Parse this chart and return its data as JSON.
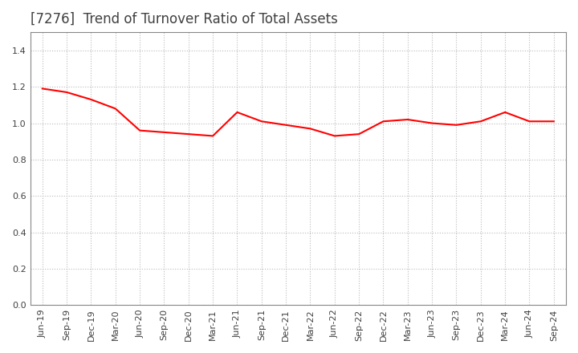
{
  "title": "[7276]  Trend of Turnover Ratio of Total Assets",
  "x_labels": [
    "Jun-19",
    "Sep-19",
    "Dec-19",
    "Mar-20",
    "Jun-20",
    "Sep-20",
    "Dec-20",
    "Mar-21",
    "Jun-21",
    "Sep-21",
    "Dec-21",
    "Mar-22",
    "Jun-22",
    "Sep-22",
    "Dec-22",
    "Mar-23",
    "Jun-23",
    "Sep-23",
    "Dec-23",
    "Mar-24",
    "Jun-24",
    "Sep-24"
  ],
  "y_values": [
    1.19,
    1.17,
    1.13,
    1.08,
    0.96,
    0.95,
    0.94,
    0.93,
    1.06,
    1.01,
    0.99,
    0.97,
    0.93,
    0.94,
    1.01,
    1.02,
    1.0,
    0.99,
    1.01,
    1.06,
    1.01,
    1.01
  ],
  "line_color": "#FF0000",
  "line_width": 1.5,
  "ylim": [
    0.0,
    1.5
  ],
  "yticks": [
    0.0,
    0.2,
    0.4,
    0.6,
    0.8,
    1.0,
    1.2,
    1.4
  ],
  "background_color": "#FFFFFF",
  "plot_bg_color": "#FFFFFF",
  "grid_color": "#BBBBBB",
  "title_fontsize": 12,
  "tick_fontsize": 8,
  "title_color": "#404040"
}
